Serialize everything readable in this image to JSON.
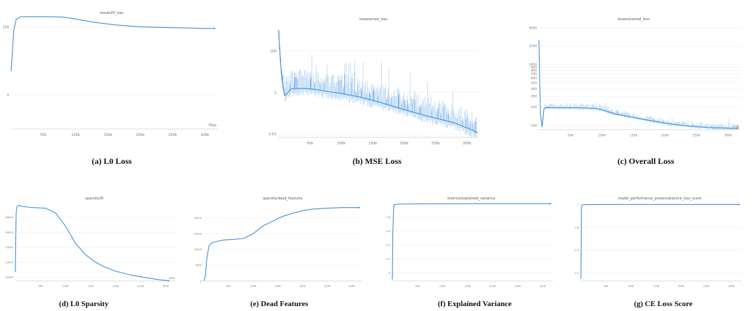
{
  "colors": {
    "line": "#3f8fd8",
    "band": "#b9d8f3",
    "axis": "#cfcfcf",
    "grid": "#eeeeee",
    "text": "#777777"
  },
  "charts": [
    {
      "id": "l0-loss",
      "title": "losses/l0_loss",
      "caption": "(a) L0 Loss",
      "xlabel": "Step",
      "chart_data": {
        "type": "line",
        "title": "losses/l0_loss",
        "xlabel": "Step",
        "ylabel": "",
        "yscale": "log",
        "xlim": [
          0,
          320000
        ],
        "ylim": [
          0.1,
          150
        ],
        "x_ticks": [
          50000,
          100000,
          150000,
          200000,
          250000,
          300000
        ],
        "x_tick_labels": [
          "50k",
          "100k",
          "150k",
          "200k",
          "250k",
          "300k"
        ],
        "y_ticks": [
          100,
          1
        ],
        "y_tick_labels": [
          "100",
          "1"
        ],
        "series": [
          {
            "x": [
              0,
              1500,
              4000,
              8000,
              15000,
              30000,
              60000,
              80000,
              100000,
              130000,
              160000,
              200000,
              250000,
              300000,
              315000
            ],
            "y": [
              5,
              15,
              80,
              170,
              200,
              200,
              200,
              195,
              170,
              135,
              115,
              100,
              95,
              90,
              90
            ]
          }
        ]
      }
    },
    {
      "id": "mse-loss",
      "title": "losses/mse_loss",
      "caption": "(b) MSE Loss",
      "xlabel": "",
      "chart_data": {
        "type": "line",
        "title": "losses/mse_loss",
        "xlabel": "",
        "ylabel": "",
        "yscale": "log",
        "xlim": [
          0,
          320000
        ],
        "ylim": [
          0.007,
          1500
        ],
        "x_ticks": [
          50000,
          100000,
          150000,
          200000,
          250000,
          300000
        ],
        "x_tick_labels": [
          "50k",
          "100k",
          "150k",
          "200k",
          "250k",
          "300k"
        ],
        "y_ticks": [
          100,
          1,
          0.01
        ],
        "y_tick_labels": [
          "100",
          "1",
          "0.01"
        ],
        "series": [
          {
            "x": [
              0,
              1000,
              3000,
              6000,
              10000,
              20000,
              40000,
              60000,
              80000,
              100000,
              130000,
              160000,
              200000,
              240000,
              280000,
              310000,
              315000
            ],
            "y": [
              1000,
              300,
              30,
              3,
              0.7,
              1.5,
              1.6,
              1.4,
              1.1,
              0.9,
              0.6,
              0.35,
              0.15,
              0.07,
              0.035,
              0.015,
              0.012
            ]
          }
        ]
      }
    },
    {
      "id": "overall-loss",
      "title": "losses/overall_loss",
      "caption": "(c) Overall Loss",
      "xlabel": "Step",
      "chart_data": {
        "type": "line",
        "title": "losses/overall_loss",
        "xlabel": "Step",
        "ylabel": "",
        "yscale": "log",
        "xlim": [
          0,
          320000
        ],
        "ylim": [
          85,
          4200
        ],
        "x_ticks": [
          50000,
          100000,
          150000,
          200000,
          250000,
          300000
        ],
        "x_tick_labels": [
          "50k",
          "100k",
          "150k",
          "200k",
          "250k",
          "300k"
        ],
        "y_ticks": [
          4000,
          2000,
          1000,
          900,
          800,
          700,
          600,
          500,
          400,
          300,
          200,
          100
        ],
        "y_tick_labels": [
          "4000",
          "2000",
          "1000",
          "900",
          "800",
          "700",
          "600",
          "500",
          "400",
          "300",
          "200",
          "100"
        ],
        "series": [
          {
            "x": [
              0,
              1000,
              2500,
              5000,
              8000,
              12000,
              30000,
              60000,
              90000,
              100000,
              120000,
              150000,
              180000,
              210000,
              240000,
              270000,
              300000,
              315000
            ],
            "y": [
              2500,
              600,
              150,
              95,
              190,
              195,
              195,
              195,
              190,
              180,
              155,
              135,
              118,
              105,
              97,
              92,
              90,
              89
            ]
          }
        ]
      }
    },
    {
      "id": "l0-sparsity",
      "title": "sparsity/l0",
      "caption": "(d) L0 Sparsity",
      "xlabel": "Step",
      "chart_data": {
        "type": "line",
        "title": "sparsity/l0",
        "xlabel": "Step",
        "ylabel": "",
        "yscale": "linear",
        "xlim": [
          0,
          320000
        ],
        "ylim": [
          9500,
          20000
        ],
        "x_ticks": [
          50000,
          100000,
          150000,
          200000,
          250000,
          300000
        ],
        "x_tick_labels": [
          "50K",
          "100K",
          "150K",
          "200K",
          "250K",
          "300K"
        ],
        "y_ticks": [
          10000,
          12000,
          14000,
          16000,
          18000
        ],
        "y_tick_labels": [
          "10000",
          "12000",
          "14000",
          "16000",
          "18000"
        ],
        "series": [
          {
            "x": [
              0,
              500,
              1500,
              3000,
              6000,
              10000,
              30000,
              60000,
              80000,
              100000,
              120000,
              140000,
              160000,
              180000,
              200000,
              230000,
              260000,
              290000,
              305000
            ],
            "y": [
              10700,
              14000,
              18500,
              19400,
              19600,
              19500,
              19300,
              19200,
              18600,
              16800,
              14500,
              13000,
              12000,
              11300,
              10800,
              10300,
              9950,
              9650,
              9550
            ]
          }
        ]
      }
    },
    {
      "id": "dead-features",
      "title": "sparsity/dead_features",
      "caption": "(e) Dead Features",
      "xlabel": "",
      "chart_data": {
        "type": "line",
        "title": "sparsity/dead_features",
        "xlabel": "",
        "ylabel": "",
        "yscale": "linear",
        "xlim": [
          0,
          320000
        ],
        "ylim": [
          0,
          25000
        ],
        "x_ticks": [
          50000,
          100000,
          150000,
          200000,
          250000,
          300000
        ],
        "x_tick_labels": [
          "50K",
          "100K",
          "150K",
          "200K",
          "250K",
          "300K"
        ],
        "y_ticks": [
          0,
          5000,
          10000,
          15000,
          20000
        ],
        "y_tick_labels": [
          "0",
          "5000",
          "10000",
          "15000",
          "20000"
        ],
        "series": [
          {
            "x": [
              0,
              3000,
              6000,
              10000,
              15000,
              25000,
              40000,
              60000,
              80000,
              100000,
              120000,
              140000,
              160000,
              180000,
              200000,
              220000,
              250000,
              280000,
              300000,
              315000
            ],
            "y": [
              0,
              1500,
              7000,
              11000,
              12000,
              12500,
              13000,
              13200,
              13500,
              15000,
              17500,
              19000,
              20500,
              21500,
              22300,
              22800,
              23100,
              23300,
              23300,
              23300
            ]
          }
        ]
      }
    },
    {
      "id": "explained-variance",
      "title": "metrics/explained_variance",
      "caption": "(f) Explained Variance",
      "xlabel": "",
      "chart_data": {
        "type": "line",
        "title": "metrics/explained_variance",
        "xlabel": "",
        "ylabel": "",
        "yscale": "linear",
        "xlim": [
          0,
          320000
        ],
        "ylim": [
          -0.12,
          1.02
        ],
        "x_ticks": [
          50000,
          100000,
          150000,
          200000,
          250000,
          300000
        ],
        "x_tick_labels": [
          "50K",
          "100K",
          "150K",
          "200K",
          "250K",
          "300K"
        ],
        "y_ticks": [
          0.8,
          0.6,
          0.4,
          0.2,
          0
        ],
        "y_tick_labels": [
          "0.8",
          "0.6",
          "0.4",
          "0.2",
          "0"
        ],
        "series": [
          {
            "x": [
              0,
              1000,
              2500,
              4000,
              6000,
              10000,
              20000,
              50000,
              100000,
              200000,
              315000
            ],
            "y": [
              -0.1,
              0.6,
              0.95,
              0.99,
              0.985,
              0.99,
              0.995,
              0.997,
              0.998,
              0.999,
              0.999
            ]
          }
        ]
      }
    },
    {
      "id": "ce-loss-score",
      "title": "model_performance_preservation/ce_loss_score",
      "caption": "(g) CE Loss Score",
      "xlabel": "",
      "chart_data": {
        "type": "line",
        "title": "model_performance_preservation/ce_loss_score",
        "xlabel": "",
        "ylabel": "",
        "yscale": "linear",
        "xlim": [
          0,
          320000
        ],
        "ylim": [
          0.33,
          1.02
        ],
        "x_ticks": [
          50000,
          100000,
          150000,
          200000,
          250000,
          300000
        ],
        "x_tick_labels": [
          "50K",
          "100K",
          "150K",
          "200K",
          "250K",
          "300K"
        ],
        "y_ticks": [
          1,
          0.8,
          0.6,
          0.4
        ],
        "y_tick_labels": [
          "1",
          "0.8",
          "0.6",
          "0.4"
        ],
        "series": [
          {
            "x": [
              0,
              500,
              1000,
              2000,
              4000,
              10000,
              100000,
              315000
            ],
            "y": [
              0.35,
              0.6,
              0.95,
              0.995,
              0.998,
              0.999,
              1.0,
              1.0
            ]
          }
        ]
      }
    }
  ]
}
